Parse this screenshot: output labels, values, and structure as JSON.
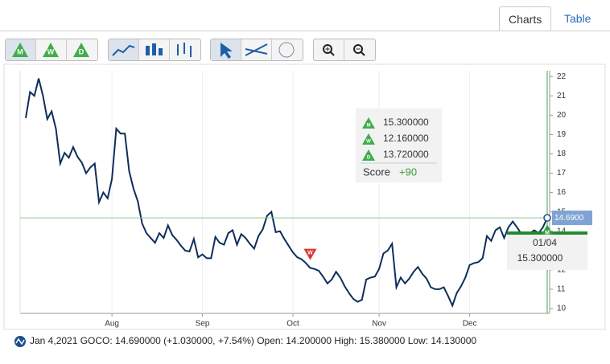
{
  "tabs": [
    "Charts",
    "Table"
  ],
  "toolbar": {
    "signals": [
      "M",
      "W",
      "D"
    ]
  },
  "chart_data": {
    "type": "line",
    "categories": [
      null,
      null,
      null,
      null,
      null,
      null,
      null,
      null,
      null,
      null,
      null,
      null,
      null,
      null,
      null,
      null,
      null,
      null,
      null,
      null,
      "Aug",
      null,
      null,
      null,
      null,
      null,
      null,
      null,
      null,
      null,
      null,
      null,
      null,
      null,
      null,
      null,
      null,
      null,
      null,
      null,
      null,
      "Sep",
      null,
      null,
      null,
      null,
      null,
      null,
      null,
      null,
      null,
      null,
      null,
      null,
      null,
      null,
      null,
      null,
      null,
      null,
      null,
      null,
      "Oct",
      null,
      null,
      null,
      null,
      null,
      null,
      null,
      null,
      null,
      null,
      null,
      null,
      null,
      null,
      null,
      null,
      null,
      null,
      null,
      "Nov",
      null,
      null,
      null,
      null,
      null,
      null,
      null,
      null,
      null,
      null,
      null,
      null,
      null,
      null,
      null,
      null,
      null,
      null,
      null,
      null,
      "Dec",
      null,
      null,
      null,
      null,
      null,
      null,
      null,
      null,
      null,
      null,
      null,
      null,
      null,
      null,
      null,
      null,
      null,
      null
    ],
    "series": [
      {
        "name": "GOCO",
        "color": "#0d2e5c",
        "values": [
          19.85,
          21.2,
          21.0,
          21.9,
          21.0,
          19.8,
          20.2,
          19.3,
          17.5,
          18.05,
          17.8,
          18.35,
          17.85,
          17.55,
          17.0,
          17.3,
          17.5,
          15.5,
          16.0,
          15.7,
          16.7,
          19.3,
          19.05,
          19.05,
          17.1,
          16.2,
          15.55,
          14.4,
          13.9,
          13.65,
          13.4,
          13.9,
          13.65,
          14.3,
          13.8,
          13.55,
          13.25,
          13.0,
          12.95,
          13.6,
          12.65,
          12.8,
          12.6,
          12.6,
          13.7,
          13.4,
          13.3,
          13.9,
          14.05,
          13.3,
          13.85,
          13.65,
          13.35,
          13.1,
          13.75,
          14.1,
          14.8,
          15.0,
          13.95,
          14.0,
          13.6,
          13.25,
          12.9,
          12.65,
          12.55,
          12.35,
          12.1,
          12.05,
          11.95,
          11.65,
          11.3,
          11.5,
          11.9,
          11.6,
          11.15,
          10.8,
          10.5,
          10.35,
          10.45,
          11.5,
          11.6,
          11.65,
          12.05,
          12.85,
          13.0,
          13.35,
          11.1,
          11.6,
          11.3,
          11.55,
          11.9,
          12.15,
          11.8,
          11.55,
          11.1,
          11.0,
          11.0,
          11.1,
          10.65,
          10.15,
          10.8,
          11.15,
          11.6,
          12.25,
          12.35,
          12.4,
          12.6,
          13.75,
          13.5,
          14.05,
          14.2,
          13.65,
          14.2,
          14.5,
          14.2,
          13.85,
          13.9,
          13.9,
          14.05,
          13.9,
          14.2,
          14.69
        ]
      }
    ],
    "ylim": [
      9.75,
      22.3
    ],
    "yticks": [
      10,
      11,
      12,
      13,
      14,
      15,
      16,
      17,
      18,
      19,
      20,
      21,
      22
    ],
    "last_price_label": "14.6900",
    "target_level": 13.9,
    "signal_markers": [
      {
        "label": "W",
        "color": "#d9342b",
        "index": 66,
        "value": 12.8
      },
      {
        "label": "M",
        "color": "#2e9e3e",
        "index": 121,
        "value": 14.05
      }
    ],
    "tooltip": {
      "rows": [
        {
          "icon": "M",
          "value": "15.300000"
        },
        {
          "icon": "W",
          "value": "12.160000"
        },
        {
          "icon": "D",
          "value": "13.720000"
        }
      ],
      "score_label": "Score",
      "score": "+90"
    },
    "crosshair": {
      "date": "01/04",
      "value": "15.300000"
    }
  },
  "status": "Jan 4,2021 GOCO: 14.690000 (+1.030000, +7.54%) Open: 14.200000 High: 15.380000 Low: 14.130000"
}
